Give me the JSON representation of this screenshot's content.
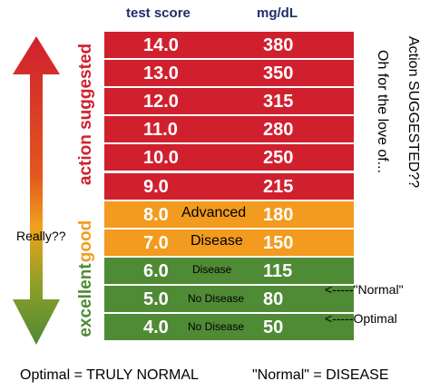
{
  "headers": {
    "col1": "test score",
    "col2": "mg/dL"
  },
  "side_labels": {
    "top": "action suggested",
    "mid": "good",
    "bottom": "excellent"
  },
  "rows": [
    {
      "score": "14.0",
      "mgdl": "380",
      "color": "#d0202e",
      "note": ""
    },
    {
      "score": "13.0",
      "mgdl": "350",
      "color": "#d0202e",
      "note": ""
    },
    {
      "score": "12.0",
      "mgdl": "315",
      "color": "#d0202e",
      "note": ""
    },
    {
      "score": "11.0",
      "mgdl": "280",
      "color": "#d0202e",
      "note": ""
    },
    {
      "score": "10.0",
      "mgdl": "250",
      "color": "#d0202e",
      "note": ""
    },
    {
      "score": "9.0",
      "mgdl": "215",
      "color": "#d0202e",
      "note": ""
    },
    {
      "score": "8.0",
      "mgdl": "180",
      "color": "#f29b1e",
      "note": "Advanced"
    },
    {
      "score": "7.0",
      "mgdl": "150",
      "color": "#f29b1e",
      "note": "Disease"
    },
    {
      "score": "6.0",
      "mgdl": "115",
      "color": "#4f8a35",
      "note": "Disease"
    },
    {
      "score": "5.0",
      "mgdl": "80",
      "color": "#4f8a35",
      "note": "No Disease"
    },
    {
      "score": "4.0",
      "mgdl": "50",
      "color": "#4f8a35",
      "note": "No Disease"
    }
  ],
  "annotations": {
    "really": "Really??",
    "normal_arrow": "<-----\"Normal\"",
    "optimal_arrow": "<-----Optimal",
    "vertical_1": "Action SUGGESTED??",
    "vertical_2": "Oh for the love of...",
    "footer_left": "Optimal = TRULY NORMAL",
    "footer_right": "\"Normal\" = DISEASE"
  },
  "colors": {
    "red": "#d0202e",
    "orange": "#f29b1e",
    "green": "#4f8a35",
    "header": "#1f2f6b"
  }
}
